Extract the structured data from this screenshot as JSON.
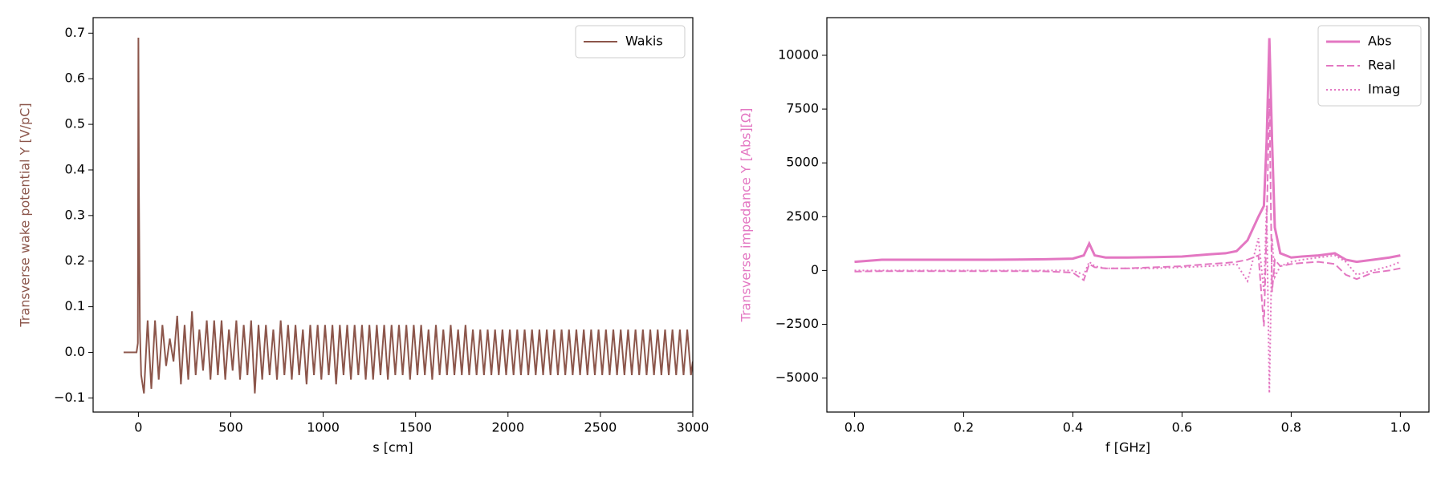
{
  "chart_data": [
    {
      "type": "line",
      "xlabel": "s [cm]",
      "ylabel": "Transverse wake potential Y [V/pC]",
      "ylabel_color": "#8c564b",
      "legend": "upper right",
      "xlim": [
        -245,
        3000
      ],
      "ylim": [
        -0.131,
        0.734
      ],
      "xticks": [
        0,
        500,
        1000,
        1500,
        2000,
        2500,
        3000
      ],
      "yticks": [
        {
          "value": -0.1,
          "label": "−0.1"
        },
        {
          "value": 0,
          "label": "0.0"
        },
        0.1,
        0.2,
        0.3,
        0.4,
        0.5,
        0.6,
        0.7
      ],
      "x": [
        -80,
        -10,
        -3,
        0,
        3,
        8,
        15,
        30,
        50,
        70,
        90,
        110,
        130,
        150,
        170,
        190,
        210,
        230,
        250,
        270,
        290,
        310,
        330,
        350,
        370,
        390,
        410,
        430,
        450,
        470,
        490,
        510,
        530,
        550,
        570,
        590,
        610,
        630,
        650,
        670,
        690,
        710,
        730,
        750,
        770,
        790,
        810,
        830,
        850,
        870,
        890,
        910,
        930,
        950,
        970,
        990,
        1010,
        1030,
        1050,
        1070,
        1090,
        1110,
        1130,
        1150,
        1170,
        1190,
        1210,
        1230,
        1250,
        1270,
        1290,
        1310,
        1330,
        1350,
        1370,
        1390,
        1410,
        1430,
        1450,
        1470,
        1490,
        1510,
        1530,
        1550,
        1570,
        1590,
        1610,
        1630,
        1650,
        1670,
        1690,
        1710,
        1730,
        1750,
        1770,
        1790,
        1810,
        1830,
        1850,
        1870,
        1890,
        1910,
        1930,
        1950,
        1970,
        1990,
        2010,
        2030,
        2050,
        2070,
        2090,
        2110,
        2130,
        2150,
        2170,
        2190,
        2210,
        2230,
        2250,
        2270,
        2290,
        2310,
        2330,
        2350,
        2370,
        2390,
        2410,
        2430,
        2450,
        2470,
        2490,
        2510,
        2530,
        2550,
        2570,
        2590,
        2610,
        2630,
        2650,
        2670,
        2690,
        2710,
        2730,
        2750,
        2770,
        2790,
        2810,
        2830,
        2850,
        2870,
        2890,
        2910,
        2930,
        2950,
        2970,
        2990,
        3000
      ],
      "series": [
        {
          "name": "Wakis",
          "color": "#8c564b",
          "linestyle": "solid",
          "values": [
            0,
            0,
            0.02,
            0.69,
            0.35,
            0.05,
            -0.05,
            -0.09,
            0.07,
            -0.08,
            0.07,
            -0.06,
            0.06,
            -0.03,
            0.03,
            -0.02,
            0.08,
            -0.07,
            0.06,
            -0.06,
            0.09,
            -0.05,
            0.05,
            -0.04,
            0.07,
            -0.06,
            0.07,
            -0.05,
            0.07,
            -0.06,
            0.05,
            -0.04,
            0.07,
            -0.06,
            0.06,
            -0.05,
            0.07,
            -0.09,
            0.06,
            -0.06,
            0.06,
            -0.05,
            0.05,
            -0.06,
            0.07,
            -0.05,
            0.06,
            -0.06,
            0.06,
            -0.05,
            0.05,
            -0.07,
            0.06,
            -0.05,
            0.06,
            -0.06,
            0.06,
            -0.05,
            0.06,
            -0.07,
            0.06,
            -0.05,
            0.06,
            -0.06,
            0.06,
            -0.05,
            0.06,
            -0.06,
            0.06,
            -0.06,
            0.06,
            -0.05,
            0.06,
            -0.06,
            0.06,
            -0.05,
            0.06,
            -0.05,
            0.06,
            -0.06,
            0.06,
            -0.05,
            0.06,
            -0.05,
            0.05,
            -0.06,
            0.06,
            -0.05,
            0.05,
            -0.05,
            0.06,
            -0.05,
            0.05,
            -0.05,
            0.06,
            -0.05,
            0.05,
            -0.05,
            0.05,
            -0.05,
            0.05,
            -0.05,
            0.05,
            -0.05,
            0.05,
            -0.05,
            0.05,
            -0.05,
            0.05,
            -0.05,
            0.05,
            -0.05,
            0.05,
            -0.05,
            0.05,
            -0.05,
            0.05,
            -0.05,
            0.05,
            -0.05,
            0.05,
            -0.05,
            0.05,
            -0.05,
            0.05,
            -0.05,
            0.05,
            -0.05,
            0.05,
            -0.05,
            0.05,
            -0.05,
            0.05,
            -0.05,
            0.05,
            -0.05,
            0.05,
            -0.05,
            0.05,
            -0.05,
            0.05,
            -0.05,
            0.05,
            -0.05,
            0.05,
            -0.05,
            0.05,
            -0.05,
            0.05,
            -0.05,
            0.05,
            -0.05,
            0.05,
            -0.05,
            0.05,
            -0.05,
            -0.02
          ]
        }
      ]
    },
    {
      "type": "line",
      "xlabel": "f [GHz]",
      "ylabel": "Transverse impedance Y [Abs][Ω]",
      "ylabel_color": "#e377c2",
      "legend": "upper right",
      "xlim": [
        -0.0507,
        1.0524
      ],
      "ylim": [
        -6580,
        11750
      ],
      "xticks": [
        {
          "value": 0,
          "label": "0.0"
        },
        0.2,
        0.4,
        0.6,
        0.8,
        {
          "value": 1,
          "label": "1.0"
        }
      ],
      "yticks": [
        {
          "value": -5000,
          "label": "−5000"
        },
        {
          "value": -2500,
          "label": "−2500"
        },
        0,
        2500,
        5000,
        7500,
        10000
      ],
      "x": [
        0,
        0.05,
        0.1,
        0.15,
        0.2,
        0.25,
        0.3,
        0.35,
        0.4,
        0.42,
        0.43,
        0.44,
        0.46,
        0.5,
        0.55,
        0.6,
        0.65,
        0.68,
        0.7,
        0.72,
        0.74,
        0.75,
        0.755,
        0.76,
        0.765,
        0.77,
        0.78,
        0.8,
        0.82,
        0.85,
        0.88,
        0.9,
        0.92,
        0.95,
        0.98,
        1.0
      ],
      "series": [
        {
          "name": "Abs",
          "color": "#e377c2",
          "linestyle": "solid",
          "values": [
            400,
            500,
            500,
            500,
            500,
            500,
            510,
            520,
            550,
            700,
            1250,
            700,
            600,
            600,
            620,
            650,
            750,
            800,
            900,
            1400,
            2500,
            3000,
            6000,
            10800,
            6000,
            2000,
            800,
            600,
            650,
            700,
            800,
            500,
            400,
            500,
            600,
            700
          ]
        },
        {
          "name": "Real",
          "color": "#e377c2",
          "linestyle": "dashed",
          "values": [
            -50,
            -30,
            -30,
            -30,
            -30,
            -30,
            -30,
            -40,
            -100,
            -450,
            300,
            150,
            100,
            100,
            150,
            200,
            300,
            350,
            400,
            500,
            700,
            -2600,
            2000,
            8000,
            -1000,
            500,
            200,
            300,
            350,
            400,
            300,
            -200,
            -400,
            -100,
            0,
            100
          ]
        },
        {
          "name": "Imag",
          "color": "#e377c2",
          "linestyle": "dotted",
          "values": [
            0,
            0,
            0,
            0,
            0,
            0,
            0,
            0,
            0,
            -200,
            400,
            200,
            100,
            100,
            100,
            150,
            200,
            250,
            300,
            -500,
            1500,
            -1000,
            3000,
            -5700,
            1500,
            -300,
            200,
            400,
            500,
            600,
            700,
            400,
            -200,
            0,
            200,
            400
          ]
        }
      ]
    }
  ]
}
